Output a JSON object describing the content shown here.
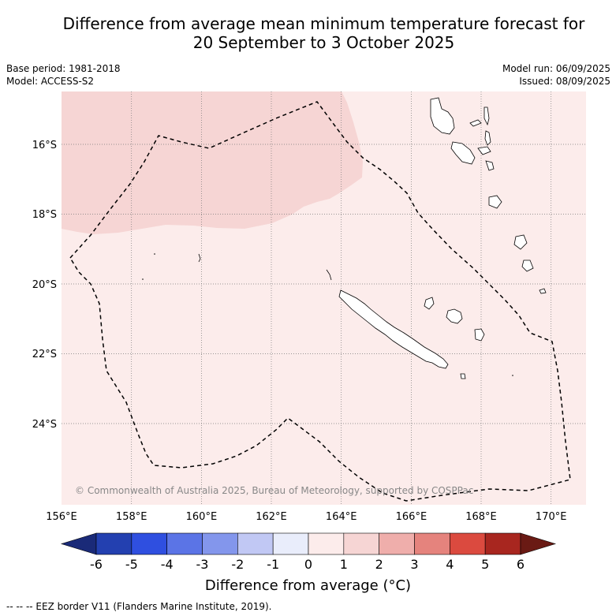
{
  "title_line1": "Difference from average mean minimum temperature forecast for",
  "title_line2": "20 September to 3 October 2025",
  "base_period": "Base period: 1981-2018",
  "model": "Model: ACCESS-S2",
  "model_run": "Model run: 06/09/2025",
  "issued": "Issued: 08/09/2025",
  "copyright": "© Commonwealth of Australia 2025, Bureau of Meteorology, supported by COSPPac",
  "lat_labels": [
    "16°S",
    "18°S",
    "20°S",
    "22°S",
    "24°S"
  ],
  "lon_labels": [
    "156°E",
    "158°E",
    "160°E",
    "162°E",
    "164°E",
    "166°E",
    "168°E",
    "170°E"
  ],
  "colorbar": {
    "ticks": [
      "-6",
      "-5",
      "-4",
      "-3",
      "-2",
      "-1",
      "0",
      "1",
      "2",
      "3",
      "4",
      "5",
      "6"
    ],
    "colors": [
      "#1a2a78",
      "#2340b0",
      "#2f4fe0",
      "#5b74e6",
      "#8396ec",
      "#c1c8f4",
      "#e9edfb",
      "#fceceb",
      "#f6d5d4",
      "#efaeab",
      "#e5837d",
      "#db4a3f",
      "#a8261f",
      "#6a1a14"
    ],
    "label": "Difference from average (°C)"
  },
  "colors": {
    "background_anomaly": "#fceceb",
    "warm_anomaly": "#f6d5d4",
    "gridline": "#777777",
    "eez_border": "#000000"
  },
  "legend_note": "--  --  -- EEZ border V11 (Flanders Marine Institute, 2019)."
}
